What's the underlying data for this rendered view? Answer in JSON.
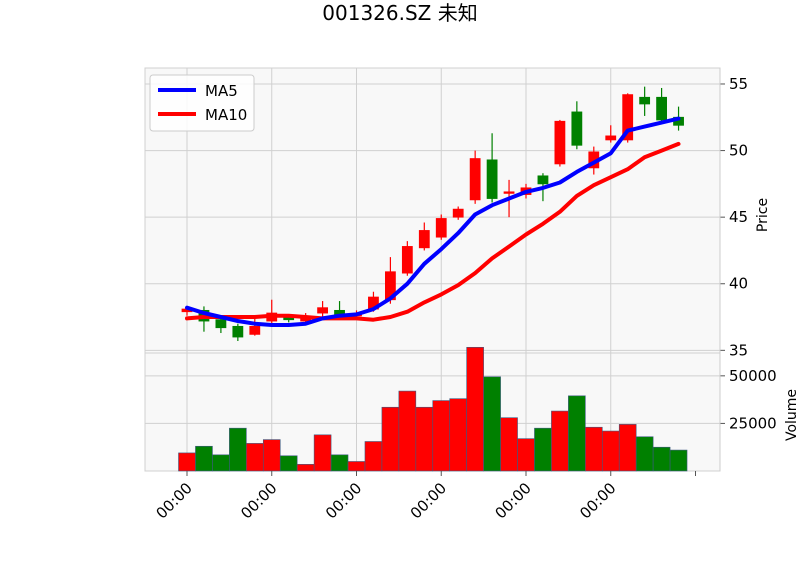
{
  "chart_data": {
    "type": "candlestick",
    "title": "001326.SZ 未知",
    "price_panel": {
      "ylabel": "Price",
      "ylim": [
        34.8,
        56.2
      ],
      "yticks": [
        35,
        40,
        45,
        50,
        55
      ],
      "grid": true,
      "legend_position": "top-left"
    },
    "volume_panel": {
      "ylabel": "Volume",
      "ylim": [
        0,
        62000
      ],
      "yticks": [
        25000,
        50000
      ],
      "grid": true
    },
    "x_tick_labels": [
      "00:00",
      "00:00",
      "00:00",
      "00:00",
      "00:00",
      "00:00"
    ],
    "x_tick_positions": [
      0,
      5,
      10,
      15,
      20,
      25
    ],
    "colors": {
      "up": "#ff0000",
      "down": "#008000",
      "ma5": "#0000ff",
      "ma10": "#ff0000",
      "panel_bg": "#f8f8f8",
      "grid": "#d0d0d0"
    },
    "candles": [
      {
        "open": 37.9,
        "close": 38.1,
        "high": 38.3,
        "low": 37.6,
        "volume": 9500
      },
      {
        "open": 38.0,
        "close": 37.2,
        "high": 38.3,
        "low": 36.4,
        "volume": 13000
      },
      {
        "open": 37.3,
        "close": 36.7,
        "high": 37.5,
        "low": 36.3,
        "volume": 8500
      },
      {
        "open": 36.8,
        "close": 36.0,
        "high": 37.0,
        "low": 35.7,
        "volume": 22500
      },
      {
        "open": 36.2,
        "close": 36.8,
        "high": 37.5,
        "low": 36.1,
        "volume": 14500
      },
      {
        "open": 37.2,
        "close": 37.8,
        "high": 38.8,
        "low": 37.0,
        "volume": 16500
      },
      {
        "open": 37.5,
        "close": 37.3,
        "high": 37.7,
        "low": 37.1,
        "volume": 8000
      },
      {
        "open": 37.2,
        "close": 37.5,
        "high": 37.8,
        "low": 37.0,
        "volume": 3500
      },
      {
        "open": 37.8,
        "close": 38.2,
        "high": 38.7,
        "low": 37.5,
        "volume": 19000
      },
      {
        "open": 38.0,
        "close": 37.5,
        "high": 38.7,
        "low": 37.3,
        "volume": 8500
      },
      {
        "open": 37.6,
        "close": 37.7,
        "high": 38.0,
        "low": 37.3,
        "volume": 5000
      },
      {
        "open": 38.1,
        "close": 39.0,
        "high": 39.4,
        "low": 37.9,
        "volume": 15500
      },
      {
        "open": 38.8,
        "close": 40.9,
        "high": 42.0,
        "low": 38.5,
        "volume": 33500
      },
      {
        "open": 40.8,
        "close": 42.8,
        "high": 43.2,
        "low": 40.6,
        "volume": 42000
      },
      {
        "open": 42.7,
        "close": 44.0,
        "high": 44.6,
        "low": 42.5,
        "volume": 33500
      },
      {
        "open": 43.5,
        "close": 44.9,
        "high": 45.2,
        "low": 43.3,
        "volume": 37000
      },
      {
        "open": 45.0,
        "close": 45.6,
        "high": 45.8,
        "low": 44.8,
        "volume": 38000
      },
      {
        "open": 46.3,
        "close": 49.4,
        "high": 50.0,
        "low": 46.0,
        "volume": 65000
      },
      {
        "open": 49.3,
        "close": 46.4,
        "high": 51.3,
        "low": 46.1,
        "volume": 49500
      },
      {
        "open": 46.9,
        "close": 46.9,
        "high": 47.8,
        "low": 45.0,
        "volume": 28000
      },
      {
        "open": 46.7,
        "close": 47.2,
        "high": 47.5,
        "low": 46.4,
        "volume": 17000
      },
      {
        "open": 48.1,
        "close": 47.5,
        "high": 48.3,
        "low": 46.2,
        "volume": 22500
      },
      {
        "open": 49.0,
        "close": 52.2,
        "high": 52.3,
        "low": 48.8,
        "volume": 31500
      },
      {
        "open": 52.9,
        "close": 50.4,
        "high": 53.7,
        "low": 50.1,
        "volume": 39500
      },
      {
        "open": 48.7,
        "close": 49.9,
        "high": 50.3,
        "low": 48.2,
        "volume": 23000
      },
      {
        "open": 50.8,
        "close": 51.1,
        "high": 51.9,
        "low": 50.6,
        "volume": 21000
      },
      {
        "open": 50.8,
        "close": 54.2,
        "high": 54.3,
        "low": 50.6,
        "volume": 24500
      },
      {
        "open": 54.0,
        "close": 53.5,
        "high": 54.8,
        "low": 52.6,
        "volume": 18000
      },
      {
        "open": 54.0,
        "close": 52.3,
        "high": 54.7,
        "low": 52.1,
        "volume": 12500
      },
      {
        "open": 52.5,
        "close": 51.9,
        "high": 53.3,
        "low": 51.5,
        "volume": 11000
      }
    ],
    "ma5": [
      38.2,
      37.8,
      37.5,
      37.2,
      37.0,
      36.9,
      36.9,
      37.0,
      37.4,
      37.6,
      37.7,
      38.1,
      38.9,
      40.0,
      41.5,
      42.6,
      43.8,
      45.2,
      45.9,
      46.4,
      46.9,
      47.2,
      47.6,
      48.4,
      49.1,
      49.8,
      51.5,
      51.8,
      52.1,
      52.4
    ],
    "ma10": [
      37.4,
      37.5,
      37.5,
      37.5,
      37.5,
      37.6,
      37.6,
      37.5,
      37.4,
      37.4,
      37.4,
      37.3,
      37.5,
      37.9,
      38.6,
      39.2,
      39.9,
      40.8,
      41.9,
      42.8,
      43.7,
      44.5,
      45.4,
      46.6,
      47.4,
      48.0,
      48.6,
      49.5,
      50.0,
      50.5
    ],
    "legend": [
      "MA5",
      "MA10"
    ]
  }
}
